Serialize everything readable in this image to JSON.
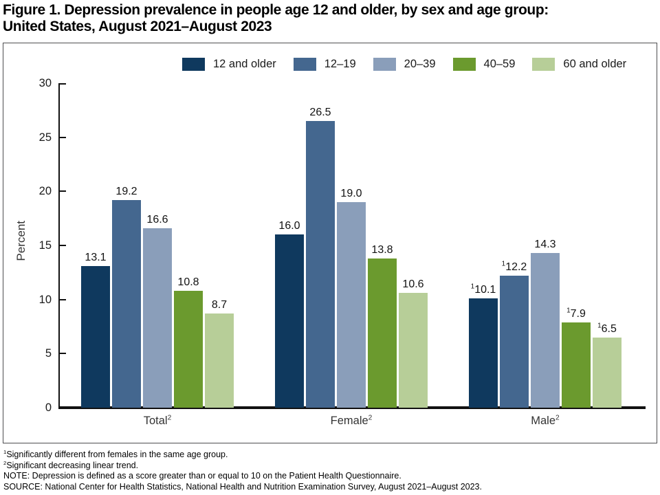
{
  "title": {
    "line1": "Figure 1. Depression prevalence in people age 12 and older, by sex and age group:",
    "line2": "United States, August 2021–August 2023"
  },
  "chart_data": {
    "type": "bar",
    "title": "Figure 1. Depression prevalence in people age 12 and older, by sex and age group: United States, August 2021–August 2023",
    "ylabel": "Percent",
    "ylim": [
      0,
      30
    ],
    "yticks": [
      0,
      5,
      10,
      15,
      20,
      25,
      30
    ],
    "grid": false,
    "legend_position": "top",
    "categories": [
      "Total",
      "Female",
      "Male"
    ],
    "category_sups": [
      "2",
      "2",
      "2"
    ],
    "series": [
      {
        "name": "12 and older",
        "color": "#0f395e",
        "values": [
          13.1,
          16.0,
          10.1
        ],
        "label_sups": [
          "",
          "",
          "1"
        ]
      },
      {
        "name": "12–19",
        "color": "#44678f",
        "values": [
          19.2,
          26.5,
          12.2
        ],
        "label_sups": [
          "",
          "",
          "1"
        ]
      },
      {
        "name": "20–39",
        "color": "#8a9eba",
        "values": [
          16.6,
          19.0,
          14.3
        ],
        "label_sups": [
          "",
          "",
          ""
        ]
      },
      {
        "name": "40–59",
        "color": "#6b9a2e",
        "values": [
          10.8,
          13.8,
          7.9
        ],
        "label_sups": [
          "",
          "",
          "1"
        ]
      },
      {
        "name": "60 and older",
        "color": "#b7ce98",
        "values": [
          8.7,
          10.6,
          6.5
        ],
        "label_sups": [
          "",
          "",
          "1"
        ]
      }
    ]
  },
  "footnotes": [
    {
      "sup": "1",
      "text": "Significantly different from females in the same age group."
    },
    {
      "sup": "2",
      "text": "Significant decreasing linear trend."
    },
    {
      "sup": "",
      "text": "NOTE: Depression is defined as a score greater than or equal to 10 on the Patient Health Questionnaire."
    },
    {
      "sup": "",
      "text": "SOURCE: National Center for Health Statistics, National Health and Nutrition Examination Survey, August 2021–August 2023."
    }
  ]
}
